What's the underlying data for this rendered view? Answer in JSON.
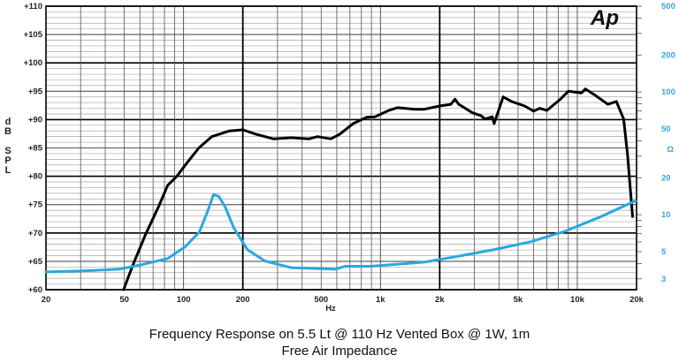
{
  "chart_data": {
    "type": "line",
    "title": "Frequency Response on 5.5 Lt @ 110 Hz Vented Box @ 1W, 1m",
    "subtitle": "Free Air Impedance",
    "xlabel": "Hz",
    "ylabel": "dB SPL",
    "y2label": "Ω",
    "xscale": "log",
    "xlim": [
      20,
      20000
    ],
    "ylim": [
      60,
      110
    ],
    "y2scale": "log",
    "y2lim": [
      2.45,
      500
    ],
    "grid": true,
    "logo": "Ap",
    "x_ticks": [
      {
        "v": 20,
        "label": "20"
      },
      {
        "v": 50,
        "label": "50"
      },
      {
        "v": 100,
        "label": "100"
      },
      {
        "v": 200,
        "label": "200"
      },
      {
        "v": 500,
        "label": "500"
      },
      {
        "v": 1000,
        "label": "1k"
      },
      {
        "v": 2000,
        "label": "2k"
      },
      {
        "v": 5000,
        "label": "5k"
      },
      {
        "v": 10000,
        "label": "10k"
      },
      {
        "v": 20000,
        "label": "20k"
      }
    ],
    "y_ticks": [
      "+60",
      "+65",
      "+70",
      "+75",
      "+80",
      "+85",
      "+90",
      "+95",
      "+100",
      "+105",
      "+110"
    ],
    "y2_ticks": [
      {
        "v": 3,
        "label": "3"
      },
      {
        "v": 5,
        "label": "5"
      },
      {
        "v": 10,
        "label": "10"
      },
      {
        "v": 20,
        "label": "20"
      },
      {
        "v": 50,
        "label": "50"
      },
      {
        "v": 100,
        "label": "100"
      },
      {
        "v": 200,
        "label": "200"
      },
      {
        "v": 500,
        "label": "500"
      }
    ],
    "series": [
      {
        "axis": "left",
        "color": "#000000",
        "x": [
          49.6,
          55.3,
          64.2,
          75,
          83,
          92.4,
          102,
          119.6,
          139,
          171,
          200,
          234,
          286,
          352,
          433,
          479,
          560,
          620,
          727,
          850,
          940,
          1100,
          1220,
          1500,
          1660,
          2000,
          2280,
          2390,
          2500,
          2930,
          3240,
          3400,
          3700,
          3780,
          4200,
          4640,
          5400,
          6000,
          6440,
          7000,
          8150,
          9000,
          10500,
          11000,
          12200,
          14300,
          15800,
          17200,
          18000,
          19100
        ],
        "y": [
          60,
          64.4,
          69.8,
          74.8,
          78.4,
          80,
          82,
          85,
          87,
          88,
          88.2,
          87.4,
          86.6,
          86.8,
          86.6,
          87,
          86.6,
          87.4,
          89.3,
          90.4,
          90.5,
          91.6,
          92.1,
          91.8,
          91.8,
          92.4,
          92.7,
          93.6,
          92.7,
          91.2,
          90.7,
          90.1,
          90.5,
          89.3,
          94,
          93.2,
          92.4,
          91.5,
          92,
          91.6,
          93.5,
          95,
          94.7,
          95.4,
          94.4,
          92.7,
          93.2,
          90.1,
          83.8,
          72.9
        ]
      },
      {
        "axis": "right",
        "color": "#29a8e0",
        "x": [
          20,
          32.8,
          47,
          60.6,
          83,
          102,
          120,
          132,
          142,
          151,
          163,
          180,
          211,
          259,
          352,
          590,
          660,
          890,
          1660,
          2500,
          3780,
          5760,
          8600,
          12900,
          19800
        ],
        "y": [
          3.42,
          3.5,
          3.6,
          3.9,
          4.4,
          5.5,
          7.2,
          10.5,
          14.6,
          14.1,
          11.5,
          7.8,
          5.2,
          4.2,
          3.7,
          3.6,
          3.8,
          3.8,
          4.1,
          4.6,
          5.2,
          6.0,
          7.3,
          9.5,
          13.0
        ]
      }
    ]
  }
}
